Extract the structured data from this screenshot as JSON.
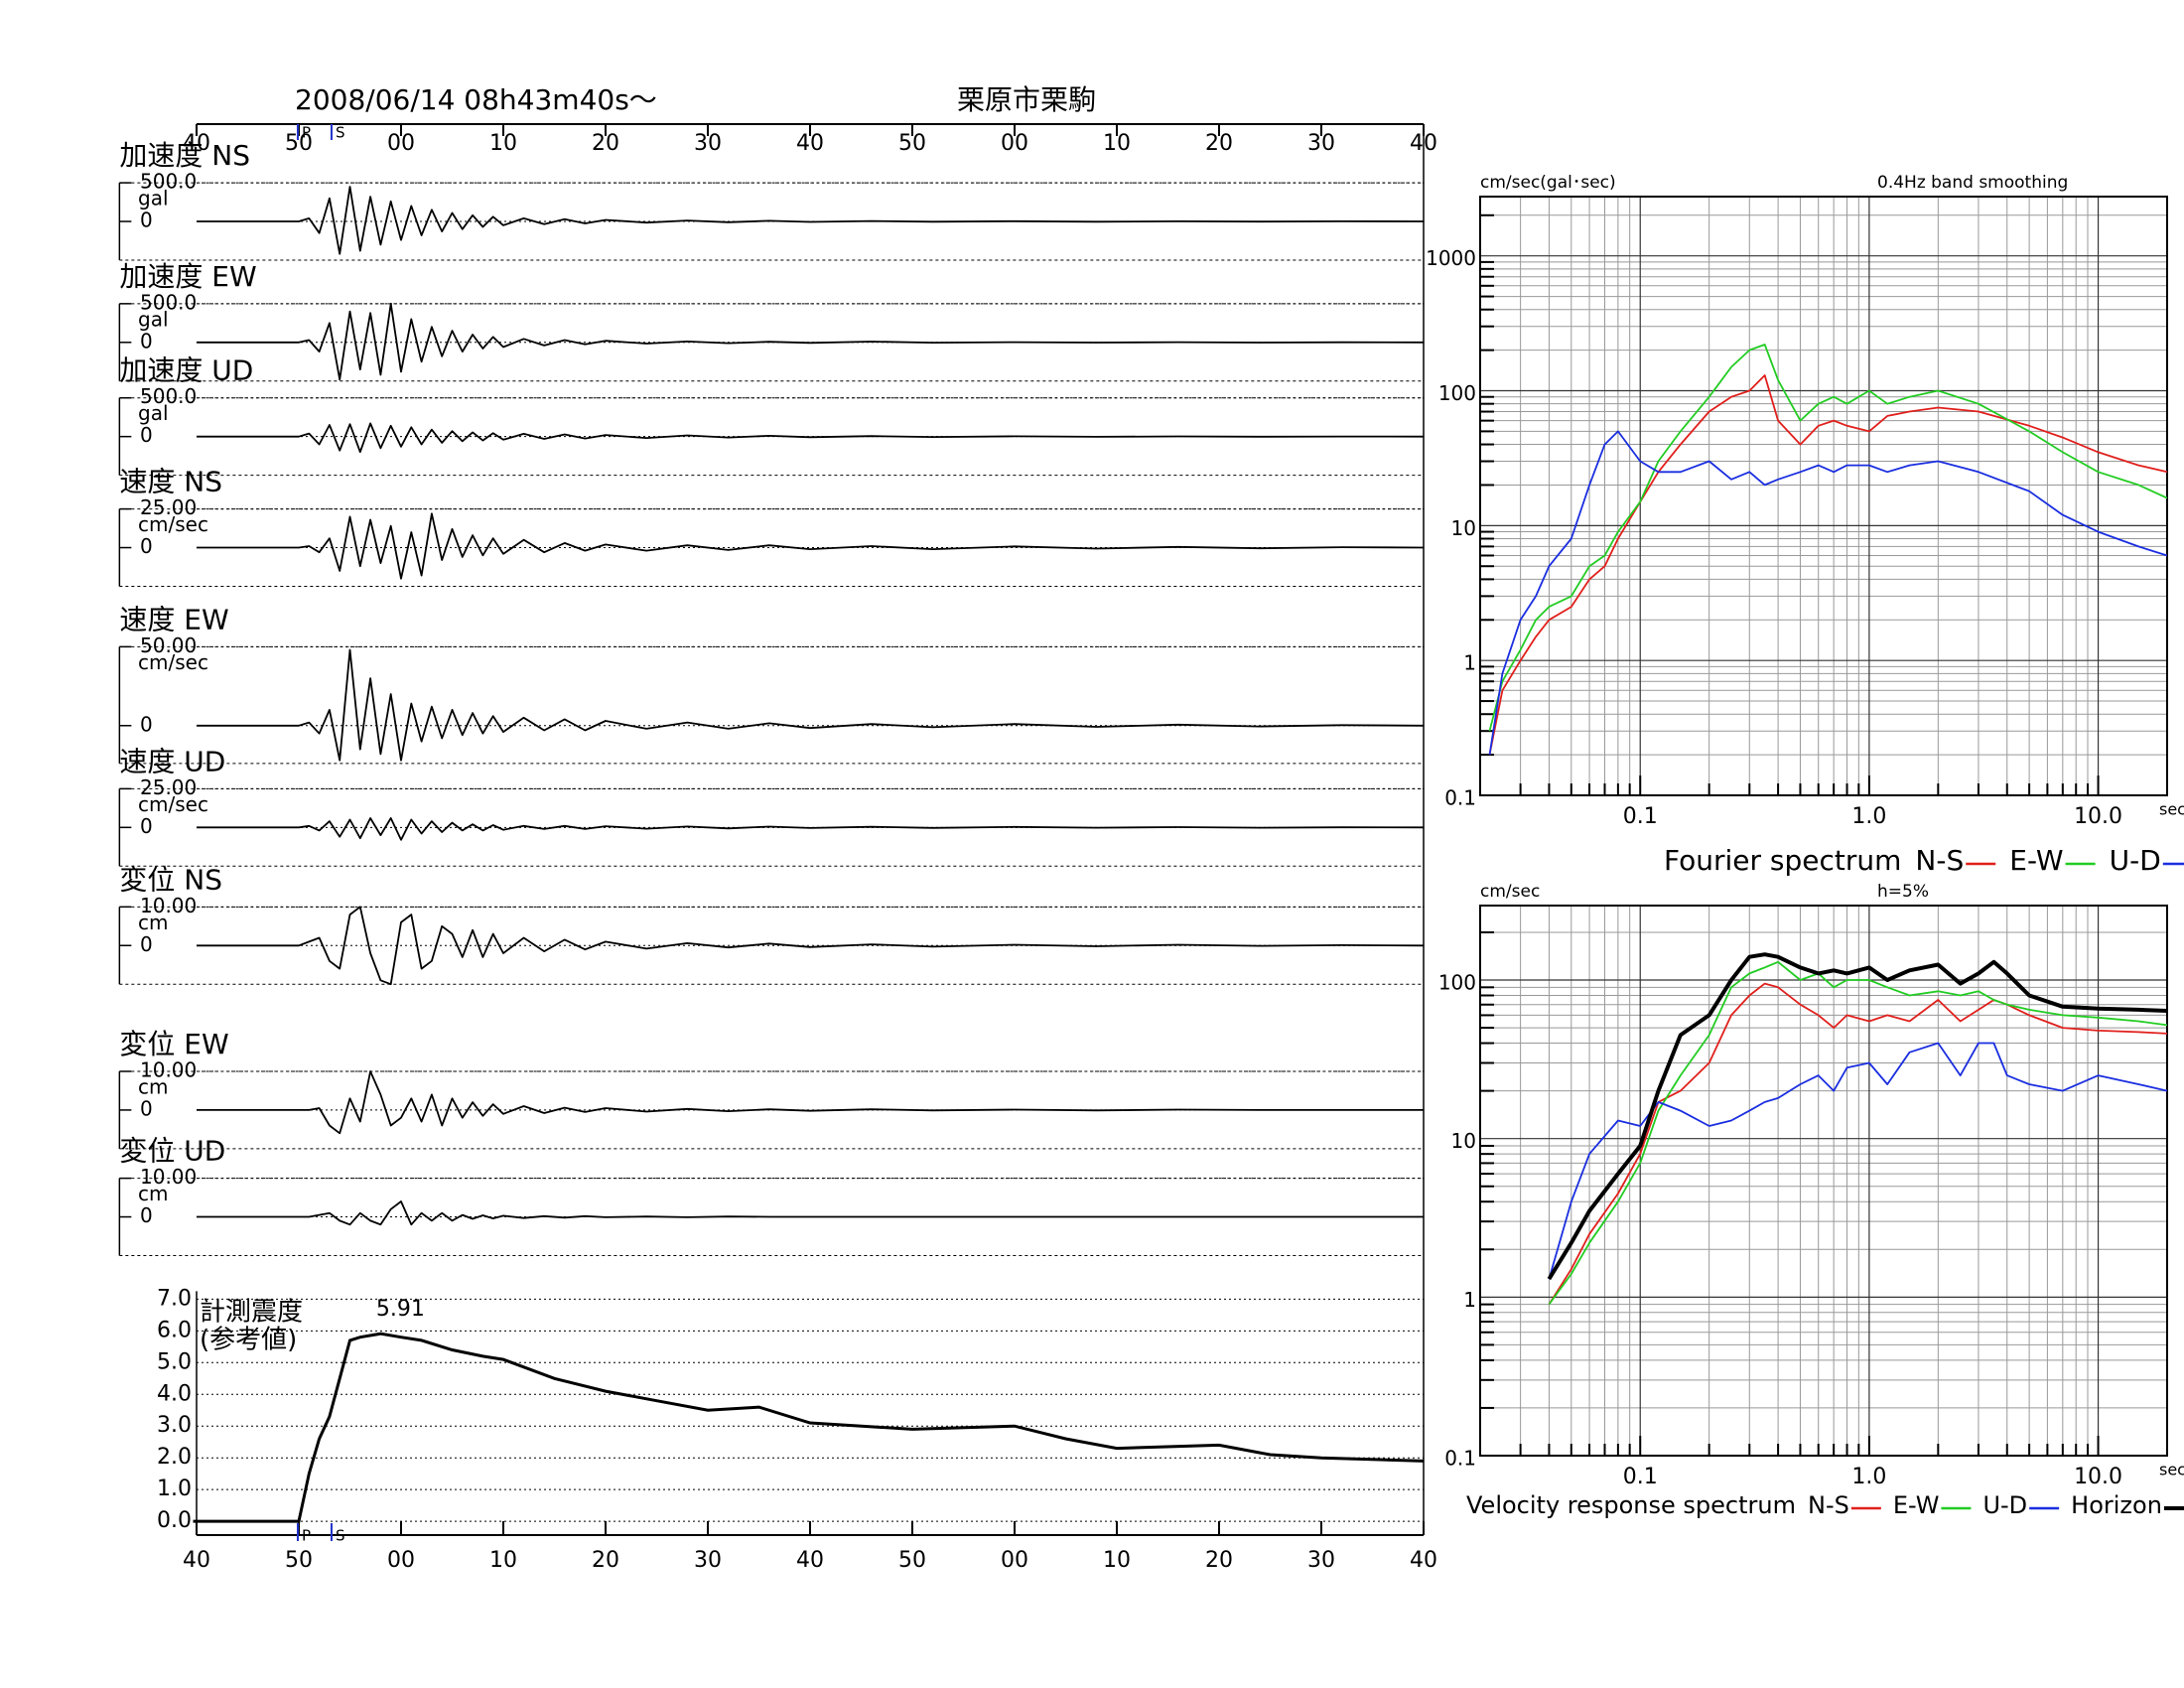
{
  "chart_data": [
    {
      "type": "line",
      "title": "栗原市栗駒",
      "subtitle": "2008/06/14  08h43m40s～",
      "xlim": [
        0,
        120
      ],
      "xticks": [
        {
          "value": 0,
          "label": "40"
        },
        {
          "value": 10,
          "label": "50"
        },
        {
          "value": 20,
          "label": "00"
        },
        {
          "value": 30,
          "label": "10"
        },
        {
          "value": 40,
          "label": "20"
        },
        {
          "value": 50,
          "label": "30"
        },
        {
          "value": 60,
          "label": "40"
        },
        {
          "value": 70,
          "label": "50"
        },
        {
          "value": 80,
          "label": "00"
        },
        {
          "value": 90,
          "label": "10"
        },
        {
          "value": 100,
          "label": "20"
        },
        {
          "value": 110,
          "label": "30"
        },
        {
          "value": 120,
          "label": "40"
        }
      ],
      "phase_markers": [
        {
          "label": "P",
          "x": 9.9
        },
        {
          "label": "S",
          "x": 13.2
        }
      ],
      "x": [
        0,
        10,
        11,
        12,
        13,
        14,
        15,
        16,
        17,
        18,
        19,
        20,
        21,
        22,
        23,
        24,
        25,
        26,
        27,
        28,
        29,
        30,
        32,
        34,
        36,
        38,
        40,
        44,
        48,
        52,
        56,
        60,
        66,
        72,
        80,
        88,
        96,
        104,
        112,
        120
      ],
      "panels": [
        {
          "label": "加速度 NS",
          "unit": "gal",
          "ylim": [
            -500,
            500
          ],
          "yticks": [
            0,
            {
              "value": 500,
              "label": "500.0"
            }
          ],
          "values": [
            0,
            0,
            40,
            -150,
            300,
            -420,
            450,
            -380,
            320,
            -300,
            260,
            -240,
            200,
            -180,
            150,
            -130,
            110,
            -100,
            80,
            -70,
            60,
            -50,
            40,
            -35,
            30,
            -25,
            20,
            -15,
            12,
            -10,
            8,
            -6,
            5,
            -4,
            3,
            -3,
            2,
            -2,
            1,
            0
          ]
        },
        {
          "label": "加速度 EW",
          "unit": "gal",
          "ylim": [
            -500,
            500
          ],
          "yticks": [
            0,
            {
              "value": 500,
              "label": "500.0"
            }
          ],
          "values": [
            0,
            0,
            30,
            -120,
            250,
            -480,
            400,
            -350,
            380,
            -420,
            500,
            -380,
            300,
            -250,
            200,
            -180,
            150,
            -120,
            100,
            -80,
            70,
            -60,
            45,
            -40,
            30,
            -25,
            20,
            -15,
            12,
            -10,
            8,
            -6,
            10,
            -4,
            3,
            -3,
            2,
            -2,
            1,
            0
          ]
        },
        {
          "label": "加速度 UD",
          "unit": "gal",
          "ylim": [
            -500,
            500
          ],
          "yticks": [
            0,
            {
              "value": 500,
              "label": "500.0"
            }
          ],
          "values": [
            0,
            0,
            40,
            -100,
            150,
            -180,
            160,
            -200,
            170,
            -150,
            140,
            -130,
            120,
            -100,
            90,
            -80,
            70,
            -60,
            55,
            -50,
            45,
            -40,
            35,
            -30,
            28,
            -25,
            20,
            -18,
            15,
            -12,
            10,
            -8,
            6,
            -5,
            4,
            -3,
            2,
            -2,
            1,
            0
          ]
        },
        {
          "label": "速度 NS",
          "unit": "cm/sec",
          "ylim": [
            -25,
            25
          ],
          "yticks": [
            0,
            {
              "value": 25,
              "label": "25.00"
            }
          ],
          "values": [
            0,
            0,
            1,
            -3,
            6,
            -15,
            20,
            -12,
            18,
            -10,
            14,
            -20,
            10,
            -18,
            22,
            -8,
            12,
            -6,
            8,
            -5,
            6,
            -4,
            5,
            -3,
            3,
            -2,
            2,
            -2,
            1.5,
            -1.5,
            1.5,
            -1,
            1,
            -1,
            0.8,
            -0.6,
            0.5,
            -0.4,
            0.3,
            0
          ]
        },
        {
          "label": "速度 EW",
          "unit": "cm/sec",
          "ylim": [
            -24,
            50
          ],
          "yticks": [
            0,
            {
              "value": 50,
              "label": "50.00"
            }
          ],
          "values": [
            0,
            0,
            2,
            -5,
            10,
            -22,
            48,
            -15,
            30,
            -18,
            20,
            -22,
            14,
            -10,
            12,
            -8,
            10,
            -6,
            8,
            -5,
            6,
            -4,
            5,
            -3,
            4,
            -3,
            3,
            -2,
            2,
            -2,
            1.5,
            -1.5,
            1,
            -1,
            1,
            -0.8,
            0.6,
            -0.5,
            0.3,
            0
          ]
        },
        {
          "label": "速度 UD",
          "unit": "cm/sec",
          "ylim": [
            -25,
            25
          ],
          "yticks": [
            0,
            {
              "value": 25,
              "label": "25.00"
            }
          ],
          "values": [
            0,
            0,
            1,
            -2,
            4,
            -6,
            5,
            -7,
            6,
            -5,
            6,
            -8,
            5,
            -4,
            4,
            -3,
            3,
            -2,
            2,
            -2,
            1.5,
            -1.5,
            1,
            -1,
            1,
            -1,
            0.8,
            -0.8,
            0.6,
            -0.6,
            0.5,
            -0.4,
            0.4,
            -0.3,
            0.3,
            -0.2,
            0.2,
            -0.2,
            0.1,
            0
          ]
        },
        {
          "label": "変位 NS",
          "unit": "cm",
          "ylim": [
            -10,
            10
          ],
          "yticks": [
            0,
            {
              "value": 10,
              "label": "10.00"
            }
          ],
          "values": [
            0,
            0,
            1,
            2,
            -4,
            -6,
            8,
            10,
            -2,
            -9,
            -10,
            6,
            8,
            -6,
            -4,
            5,
            3,
            -3,
            4,
            -3,
            3,
            -2,
            2,
            -1.5,
            1.5,
            -1,
            1,
            -0.8,
            0.6,
            -0.5,
            0.5,
            -0.4,
            0.3,
            -0.3,
            0.2,
            -0.2,
            0.2,
            -0.1,
            0.1,
            0
          ]
        },
        {
          "label": "変位 EW",
          "unit": "cm",
          "ylim": [
            -10,
            10
          ],
          "yticks": [
            0,
            {
              "value": 10,
              "label": "10.00"
            }
          ],
          "values": [
            0,
            0,
            0,
            0.5,
            -4,
            -6,
            3,
            -3,
            10,
            4,
            -4,
            -2,
            3,
            -3,
            4,
            -4,
            3,
            -2,
            2,
            -1.5,
            1.5,
            -1,
            1,
            -0.8,
            0.6,
            -0.5,
            0.5,
            -0.4,
            0.3,
            -0.3,
            0.2,
            -0.2,
            0.2,
            -0.1,
            0.1,
            -0.1,
            0.1,
            0,
            0,
            0
          ]
        },
        {
          "label": "変位 UD",
          "unit": "cm",
          "ylim": [
            -10,
            10
          ],
          "yticks": [
            0,
            {
              "value": 10,
              "label": "10.00"
            }
          ],
          "values": [
            0,
            0,
            0,
            0.5,
            1,
            -1,
            -2,
            1,
            -1,
            -2,
            2,
            4,
            -2,
            1,
            -1,
            1,
            -1,
            0.5,
            -0.5,
            0.4,
            -0.4,
            0.3,
            -0.3,
            0.2,
            -0.2,
            0.2,
            -0.1,
            0.1,
            -0.1,
            0.1,
            0,
            0,
            0,
            0,
            0,
            0,
            0,
            0,
            0,
            0
          ]
        }
      ]
    },
    {
      "type": "line",
      "title": "計測震度",
      "subtitle": "(参考値)",
      "peak_label": "5.91",
      "xlim": [
        0,
        120
      ],
      "xticks": [
        {
          "value": 0,
          "label": "40"
        },
        {
          "value": 10,
          "label": "50"
        },
        {
          "value": 20,
          "label": "00"
        },
        {
          "value": 30,
          "label": "10"
        },
        {
          "value": 40,
          "label": "20"
        },
        {
          "value": 50,
          "label": "30"
        },
        {
          "value": 60,
          "label": "40"
        },
        {
          "value": 70,
          "label": "50"
        },
        {
          "value": 80,
          "label": "00"
        },
        {
          "value": 90,
          "label": "10"
        },
        {
          "value": 100,
          "label": "20"
        },
        {
          "value": 110,
          "label": "30"
        },
        {
          "value": 120,
          "label": "40"
        }
      ],
      "phase_markers": [
        {
          "label": "P",
          "x": 9.9
        },
        {
          "label": "S",
          "x": 13.2
        }
      ],
      "ylim": [
        0,
        7
      ],
      "yticks": [
        {
          "value": 0,
          "label": "0.0"
        },
        {
          "value": 1,
          "label": "1.0"
        },
        {
          "value": 2,
          "label": "2.0"
        },
        {
          "value": 3,
          "label": "3.0"
        },
        {
          "value": 4,
          "label": "4.0"
        },
        {
          "value": 5,
          "label": "5.0"
        },
        {
          "value": 6,
          "label": "6.0"
        },
        {
          "value": 7,
          "label": "7.0"
        }
      ],
      "grid": true,
      "x": [
        5,
        10,
        11,
        12,
        13,
        14,
        15,
        16,
        18,
        20,
        22,
        25,
        28,
        30,
        35,
        40,
        45,
        50,
        55,
        60,
        70,
        80,
        85,
        90,
        100,
        105,
        110,
        120
      ],
      "values": [
        0,
        0,
        1.5,
        2.6,
        3.3,
        4.5,
        5.7,
        5.8,
        5.91,
        5.8,
        5.7,
        5.4,
        5.2,
        5.1,
        4.5,
        4.1,
        3.8,
        3.5,
        3.6,
        3.1,
        2.9,
        3.0,
        2.6,
        2.3,
        2.4,
        2.1,
        2.0,
        1.9
      ]
    },
    {
      "type": "line",
      "title": "Fourier spectrum",
      "y_label": "cm/sec(gal･sec)",
      "note": "0.4Hz band smoothing",
      "x_label": "sec",
      "log_x": true,
      "log_y": true,
      "grid": true,
      "xlim": [
        0.02,
        20
      ],
      "xticks": [
        0.1,
        {
          "value": 1,
          "label": "1.0"
        },
        {
          "value": 10,
          "label": "10.0"
        }
      ],
      "ylim": [
        0.1,
        2750
      ],
      "yticks": [
        0.1,
        1,
        10,
        100,
        1000
      ],
      "x": [
        0.022,
        0.025,
        0.03,
        0.035,
        0.04,
        0.05,
        0.06,
        0.07,
        0.08,
        0.1,
        0.12,
        0.15,
        0.2,
        0.25,
        0.3,
        0.35,
        0.4,
        0.5,
        0.6,
        0.7,
        0.8,
        1,
        1.2,
        1.5,
        2,
        3,
        5,
        7,
        10,
        15,
        20
      ],
      "series": [
        {
          "name": "N-S",
          "color": "#e0201c",
          "values": [
            0.2,
            0.6,
            1,
            1.5,
            2,
            2.5,
            4,
            5,
            8,
            15,
            25,
            40,
            70,
            90,
            100,
            130,
            60,
            40,
            55,
            60,
            55,
            50,
            65,
            70,
            75,
            70,
            55,
            45,
            35,
            28,
            25
          ]
        },
        {
          "name": "E-W",
          "color": "#22cc22",
          "values": [
            0.3,
            0.7,
            1.2,
            2,
            2.5,
            3,
            5,
            6,
            9,
            15,
            30,
            50,
            90,
            150,
            200,
            220,
            120,
            60,
            80,
            90,
            80,
            100,
            80,
            90,
            100,
            80,
            50,
            35,
            25,
            20,
            16
          ]
        },
        {
          "name": "U-D",
          "color": "#1a2ee0",
          "values": [
            0.2,
            0.8,
            2,
            3,
            5,
            8,
            20,
            40,
            50,
            30,
            25,
            25,
            30,
            22,
            25,
            20,
            22,
            25,
            28,
            25,
            28,
            28,
            25,
            28,
            30,
            25,
            18,
            12,
            9,
            7,
            6
          ]
        }
      ]
    },
    {
      "type": "line",
      "title": "Velocity response spectrum",
      "y_label": "cm/sec",
      "note": "h=5%",
      "x_label": "sec",
      "log_x": true,
      "log_y": true,
      "grid": true,
      "xlim": [
        0.02,
        20
      ],
      "xticks": [
        0.1,
        {
          "value": 1,
          "label": "1.0"
        },
        {
          "value": 10,
          "label": "10.0"
        }
      ],
      "ylim": [
        0.1,
        295
      ],
      "yticks": [
        0.1,
        1,
        10,
        100
      ],
      "x": [
        0.04,
        0.05,
        0.06,
        0.08,
        0.1,
        0.12,
        0.15,
        0.2,
        0.25,
        0.3,
        0.35,
        0.4,
        0.5,
        0.6,
        0.7,
        0.8,
        1,
        1.2,
        1.5,
        2,
        2.5,
        3,
        3.5,
        4,
        5,
        7,
        10,
        15,
        20
      ],
      "series": [
        {
          "name": "N-S",
          "color": "#e0201c",
          "values": [
            0.9,
            1.5,
            2.5,
            4.5,
            8,
            17,
            20,
            30,
            60,
            80,
            95,
            90,
            70,
            60,
            50,
            60,
            55,
            60,
            55,
            75,
            55,
            65,
            75,
            70,
            60,
            50,
            48,
            47,
            46
          ]
        },
        {
          "name": "E-W",
          "color": "#22cc22",
          "values": [
            0.9,
            1.4,
            2.2,
            4,
            7,
            15,
            25,
            45,
            90,
            110,
            120,
            130,
            100,
            110,
            90,
            100,
            100,
            90,
            80,
            85,
            80,
            85,
            75,
            70,
            65,
            60,
            58,
            55,
            52
          ]
        },
        {
          "name": "U-D",
          "color": "#1a2ee0",
          "values": [
            1.3,
            4,
            8,
            13,
            12,
            17,
            15,
            12,
            13,
            15,
            17,
            18,
            22,
            25,
            20,
            28,
            30,
            22,
            35,
            40,
            25,
            40,
            40,
            25,
            22,
            20,
            25,
            22,
            20
          ]
        },
        {
          "name": "Horizon",
          "color": "#000000",
          "linewidth": 4,
          "values": [
            1.3,
            2.2,
            3.5,
            6,
            9,
            20,
            45,
            60,
            100,
            140,
            145,
            140,
            120,
            110,
            115,
            110,
            120,
            100,
            115,
            125,
            95,
            110,
            130,
            110,
            80,
            68,
            66,
            65,
            64
          ]
        }
      ]
    }
  ]
}
